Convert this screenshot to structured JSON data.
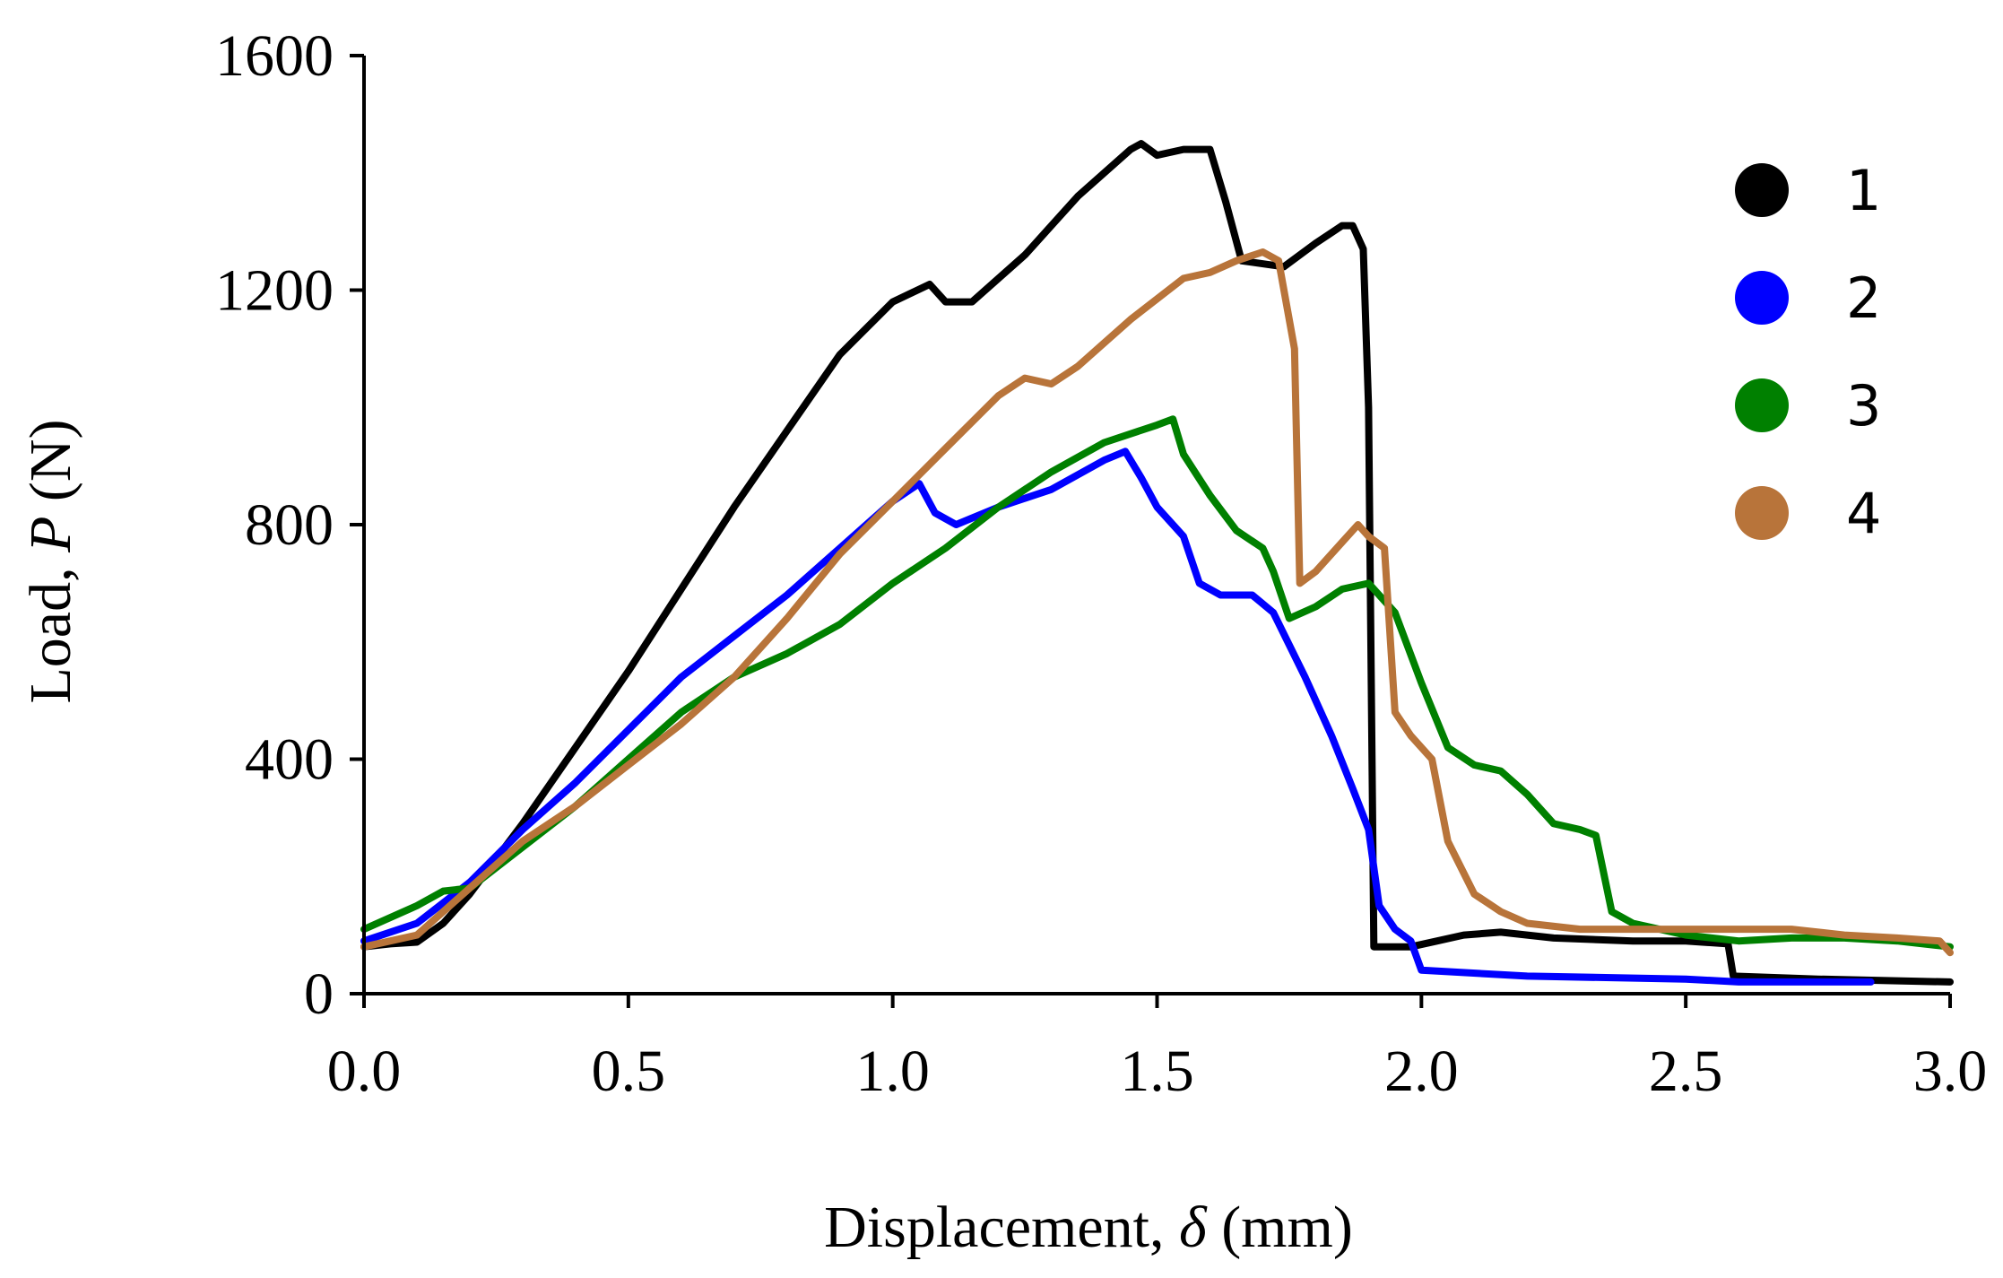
{
  "chart_data": {
    "type": "line",
    "title": "",
    "xlabel": "Displacement, δ (mm)",
    "xlabel_parts": {
      "prefix": "Displacement, ",
      "symbol": "δ",
      "suffix": " (mm)"
    },
    "ylabel": "Load, P (N)",
    "ylabel_parts": {
      "prefix": "Load, ",
      "symbol": "P",
      "suffix": " (N)"
    },
    "xlim": [
      0,
      3.0
    ],
    "ylim": [
      0,
      1600
    ],
    "x_ticks": [
      0.0,
      0.5,
      1.0,
      1.5,
      2.0,
      2.5,
      3.0
    ],
    "x_tick_labels": [
      "0.0",
      "0.5",
      "1.0",
      "1.5",
      "2.0",
      "2.5",
      "3.0"
    ],
    "y_ticks": [
      0,
      400,
      800,
      1200,
      1600
    ],
    "y_tick_labels": [
      "0",
      "400",
      "800",
      "1200",
      "1600"
    ],
    "grid": false,
    "legend_position": "top-right",
    "series": [
      {
        "name": "1",
        "color": "#000000",
        "points": [
          [
            0,
            80
          ],
          [
            0.05,
            85
          ],
          [
            0.1,
            88
          ],
          [
            0.15,
            120
          ],
          [
            0.2,
            170
          ],
          [
            0.3,
            290
          ],
          [
            0.4,
            420
          ],
          [
            0.5,
            550
          ],
          [
            0.6,
            690
          ],
          [
            0.7,
            830
          ],
          [
            0.8,
            960
          ],
          [
            0.9,
            1090
          ],
          [
            1.0,
            1180
          ],
          [
            1.07,
            1210
          ],
          [
            1.1,
            1180
          ],
          [
            1.15,
            1180
          ],
          [
            1.25,
            1260
          ],
          [
            1.35,
            1360
          ],
          [
            1.45,
            1440
          ],
          [
            1.47,
            1450
          ],
          [
            1.5,
            1430
          ],
          [
            1.55,
            1440
          ],
          [
            1.6,
            1440
          ],
          [
            1.63,
            1350
          ],
          [
            1.66,
            1250
          ],
          [
            1.74,
            1240
          ],
          [
            1.8,
            1280
          ],
          [
            1.85,
            1310
          ],
          [
            1.87,
            1310
          ],
          [
            1.89,
            1270
          ],
          [
            1.9,
            1000
          ],
          [
            1.91,
            80
          ],
          [
            1.98,
            80
          ],
          [
            2.03,
            90
          ],
          [
            2.08,
            100
          ],
          [
            2.15,
            105
          ],
          [
            2.25,
            95
          ],
          [
            2.4,
            90
          ],
          [
            2.5,
            90
          ],
          [
            2.58,
            85
          ],
          [
            2.59,
            30
          ],
          [
            2.75,
            25
          ],
          [
            3.0,
            20
          ]
        ]
      },
      {
        "name": "2",
        "color": "#0000ff",
        "points": [
          [
            0,
            90
          ],
          [
            0.1,
            120
          ],
          [
            0.2,
            190
          ],
          [
            0.3,
            280
          ],
          [
            0.4,
            360
          ],
          [
            0.5,
            450
          ],
          [
            0.6,
            540
          ],
          [
            0.7,
            610
          ],
          [
            0.8,
            680
          ],
          [
            0.9,
            760
          ],
          [
            1.0,
            840
          ],
          [
            1.05,
            870
          ],
          [
            1.08,
            820
          ],
          [
            1.12,
            800
          ],
          [
            1.2,
            830
          ],
          [
            1.3,
            860
          ],
          [
            1.4,
            910
          ],
          [
            1.44,
            925
          ],
          [
            1.47,
            880
          ],
          [
            1.5,
            830
          ],
          [
            1.55,
            780
          ],
          [
            1.58,
            700
          ],
          [
            1.62,
            680
          ],
          [
            1.68,
            680
          ],
          [
            1.72,
            650
          ],
          [
            1.78,
            540
          ],
          [
            1.83,
            440
          ],
          [
            1.87,
            350
          ],
          [
            1.9,
            280
          ],
          [
            1.92,
            150
          ],
          [
            1.95,
            110
          ],
          [
            1.98,
            90
          ],
          [
            2.0,
            40
          ],
          [
            2.2,
            30
          ],
          [
            2.5,
            25
          ],
          [
            2.6,
            20
          ],
          [
            2.85,
            20
          ]
        ]
      },
      {
        "name": "3",
        "color": "#008000",
        "points": [
          [
            0,
            110
          ],
          [
            0.1,
            150
          ],
          [
            0.15,
            175
          ],
          [
            0.2,
            180
          ],
          [
            0.3,
            250
          ],
          [
            0.4,
            320
          ],
          [
            0.5,
            400
          ],
          [
            0.6,
            480
          ],
          [
            0.7,
            540
          ],
          [
            0.8,
            580
          ],
          [
            0.9,
            630
          ],
          [
            1.0,
            700
          ],
          [
            1.1,
            760
          ],
          [
            1.2,
            830
          ],
          [
            1.3,
            890
          ],
          [
            1.4,
            940
          ],
          [
            1.5,
            970
          ],
          [
            1.53,
            980
          ],
          [
            1.55,
            920
          ],
          [
            1.6,
            850
          ],
          [
            1.65,
            790
          ],
          [
            1.7,
            760
          ],
          [
            1.72,
            720
          ],
          [
            1.75,
            640
          ],
          [
            1.8,
            660
          ],
          [
            1.85,
            690
          ],
          [
            1.9,
            700
          ],
          [
            1.95,
            650
          ],
          [
            2.0,
            530
          ],
          [
            2.05,
            420
          ],
          [
            2.1,
            390
          ],
          [
            2.15,
            380
          ],
          [
            2.2,
            340
          ],
          [
            2.25,
            290
          ],
          [
            2.3,
            280
          ],
          [
            2.33,
            270
          ],
          [
            2.36,
            140
          ],
          [
            2.4,
            120
          ],
          [
            2.5,
            100
          ],
          [
            2.6,
            90
          ],
          [
            2.7,
            95
          ],
          [
            2.8,
            95
          ],
          [
            2.9,
            90
          ],
          [
            3.0,
            80
          ]
        ]
      },
      {
        "name": "4",
        "color": "#b8743a",
        "points": [
          [
            0,
            80
          ],
          [
            0.1,
            100
          ],
          [
            0.2,
            180
          ],
          [
            0.3,
            260
          ],
          [
            0.4,
            320
          ],
          [
            0.5,
            390
          ],
          [
            0.6,
            460
          ],
          [
            0.7,
            540
          ],
          [
            0.8,
            640
          ],
          [
            0.9,
            750
          ],
          [
            1.0,
            840
          ],
          [
            1.1,
            930
          ],
          [
            1.2,
            1020
          ],
          [
            1.25,
            1050
          ],
          [
            1.3,
            1040
          ],
          [
            1.35,
            1070
          ],
          [
            1.45,
            1150
          ],
          [
            1.55,
            1220
          ],
          [
            1.6,
            1230
          ],
          [
            1.65,
            1250
          ],
          [
            1.7,
            1265
          ],
          [
            1.73,
            1250
          ],
          [
            1.76,
            1100
          ],
          [
            1.77,
            700
          ],
          [
            1.8,
            720
          ],
          [
            1.85,
            770
          ],
          [
            1.88,
            800
          ],
          [
            1.9,
            780
          ],
          [
            1.93,
            760
          ],
          [
            1.95,
            480
          ],
          [
            1.98,
            440
          ],
          [
            2.02,
            400
          ],
          [
            2.05,
            260
          ],
          [
            2.1,
            170
          ],
          [
            2.15,
            140
          ],
          [
            2.2,
            120
          ],
          [
            2.3,
            110
          ],
          [
            2.5,
            110
          ],
          [
            2.7,
            110
          ],
          [
            2.8,
            100
          ],
          [
            2.9,
            95
          ],
          [
            2.98,
            90
          ],
          [
            3.0,
            70
          ]
        ]
      }
    ]
  }
}
